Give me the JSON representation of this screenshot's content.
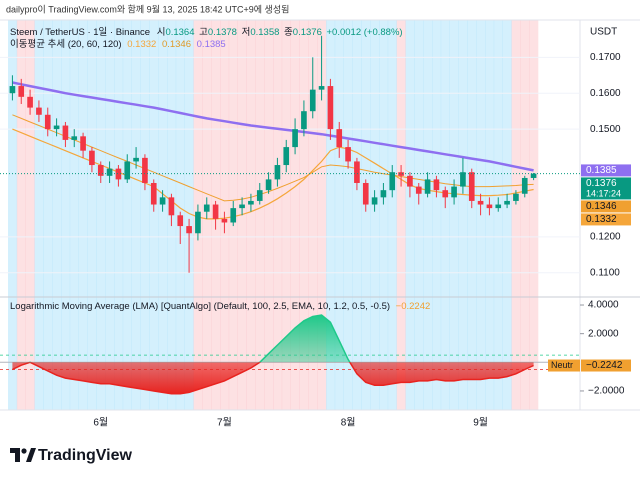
{
  "chart_data": {
    "type": "candlestick",
    "caption": "dailypro이 TradingView.com와 함께 9월 13, 2025 18:42 UTC+9에 생성됨",
    "symbol": "Steem / TetherUS · 1일 · Binance",
    "ohlc_labels": {
      "open": "시",
      "high": "고",
      "low": "저",
      "close": "종"
    },
    "change": "+0.0012 (+0.88%)",
    "ma_title": "이동평균 추세 (20, 60, 120)",
    "currency": "USDT",
    "countdown": "14:17:24",
    "up_color": "#089981",
    "down_color": "#f23645",
    "categories": [
      null,
      null,
      null,
      null,
      null,
      null,
      null,
      null,
      null,
      null,
      "6월",
      null,
      null,
      null,
      null,
      null,
      null,
      null,
      null,
      null,
      null,
      null,
      null,
      null,
      "7월",
      null,
      null,
      null,
      null,
      null,
      null,
      null,
      null,
      null,
      null,
      null,
      null,
      null,
      "8월",
      null,
      null,
      null,
      null,
      null,
      null,
      null,
      null,
      null,
      null,
      null,
      null,
      null,
      null,
      "9월",
      null,
      null,
      null,
      null,
      null,
      null
    ],
    "open": [
      0.16,
      0.162,
      0.159,
      0.156,
      0.154,
      0.15,
      0.151,
      0.147,
      0.148,
      0.144,
      0.14,
      0.137,
      0.139,
      0.136,
      0.141,
      0.142,
      0.135,
      0.129,
      0.131,
      0.126,
      0.123,
      0.121,
      0.127,
      0.129,
      0.125,
      0.124,
      0.128,
      0.129,
      0.13,
      0.133,
      0.136,
      0.14,
      0.145,
      0.15,
      0.155,
      0.161,
      0.162,
      0.15,
      0.145,
      0.141,
      0.135,
      0.129,
      0.131,
      0.133,
      0.138,
      0.137,
      0.134,
      0.132,
      0.136,
      0.133,
      0.131,
      0.134,
      0.138,
      0.13,
      0.129,
      0.128,
      0.129,
      0.13,
      0.132,
      0.1364
    ],
    "high": [
      0.165,
      0.164,
      0.161,
      0.158,
      0.156,
      0.153,
      0.152,
      0.15,
      0.149,
      0.145,
      0.141,
      0.141,
      0.14,
      0.143,
      0.145,
      0.143,
      0.136,
      0.133,
      0.132,
      0.127,
      0.125,
      0.129,
      0.131,
      0.13,
      0.127,
      0.13,
      0.131,
      0.132,
      0.135,
      0.138,
      0.142,
      0.147,
      0.153,
      0.158,
      0.17,
      0.176,
      0.164,
      0.152,
      0.147,
      0.142,
      0.136,
      0.133,
      0.135,
      0.14,
      0.14,
      0.138,
      0.135,
      0.138,
      0.137,
      0.134,
      0.136,
      0.142,
      0.139,
      0.132,
      0.131,
      0.131,
      0.132,
      0.133,
      0.137,
      0.1378
    ],
    "low": [
      0.158,
      0.157,
      0.154,
      0.152,
      0.148,
      0.148,
      0.145,
      0.145,
      0.142,
      0.138,
      0.135,
      0.135,
      0.134,
      0.135,
      0.139,
      0.133,
      0.127,
      0.127,
      0.123,
      0.118,
      0.11,
      0.119,
      0.125,
      0.122,
      0.121,
      0.123,
      0.126,
      0.127,
      0.129,
      0.132,
      0.134,
      0.138,
      0.143,
      0.148,
      0.153,
      0.158,
      0.147,
      0.142,
      0.139,
      0.133,
      0.127,
      0.127,
      0.129,
      0.131,
      0.134,
      0.131,
      0.129,
      0.131,
      0.131,
      0.128,
      0.129,
      0.132,
      0.128,
      0.126,
      0.126,
      0.127,
      0.128,
      0.129,
      0.131,
      0.1358
    ],
    "close": [
      0.162,
      0.159,
      0.156,
      0.154,
      0.15,
      0.151,
      0.147,
      0.148,
      0.144,
      0.14,
      0.137,
      0.139,
      0.136,
      0.141,
      0.142,
      0.135,
      0.129,
      0.131,
      0.126,
      0.123,
      0.121,
      0.127,
      0.129,
      0.125,
      0.124,
      0.128,
      0.129,
      0.13,
      0.133,
      0.136,
      0.14,
      0.145,
      0.15,
      0.155,
      0.161,
      0.162,
      0.15,
      0.145,
      0.141,
      0.135,
      0.129,
      0.131,
      0.133,
      0.138,
      0.137,
      0.134,
      0.132,
      0.136,
      0.133,
      0.131,
      0.134,
      0.138,
      0.13,
      0.129,
      0.128,
      0.129,
      0.13,
      0.132,
      0.1364,
      0.1376
    ],
    "series": [
      {
        "color": "#f5a63a",
        "width": 1.2,
        "values": [
          0.15,
          0.149,
          0.148,
          0.147,
          0.146,
          0.145,
          0.144,
          0.143,
          0.142,
          0.141,
          0.14,
          0.139,
          0.138,
          0.137,
          0.136,
          0.135,
          0.134,
          0.132,
          0.13,
          0.128,
          0.1265,
          0.1255,
          0.125,
          0.125,
          0.1252,
          0.1256,
          0.1262,
          0.127,
          0.128,
          0.1292,
          0.1306,
          0.1322,
          0.134,
          0.136,
          0.1385,
          0.141,
          0.144,
          0.145,
          0.1445,
          0.1435,
          0.142,
          0.1405,
          0.139,
          0.1375,
          0.136,
          0.1345,
          0.1335,
          0.133,
          0.1326,
          0.1322,
          0.132,
          0.1318,
          0.1316,
          0.1315,
          0.1315,
          0.1316,
          0.1318,
          0.1322,
          0.1327,
          0.1332
        ]
      },
      {
        "color": "#f0a030",
        "width": 1,
        "values": [
          0.154,
          0.153,
          0.152,
          0.151,
          0.15,
          0.149,
          0.148,
          0.147,
          0.146,
          0.145,
          0.144,
          0.143,
          0.142,
          0.141,
          0.14,
          0.139,
          0.138,
          0.137,
          0.136,
          0.135,
          0.134,
          0.133,
          0.132,
          0.131,
          0.13,
          0.1302,
          0.1305,
          0.131,
          0.1318,
          0.1326,
          0.1335,
          0.1345,
          0.1355,
          0.1365,
          0.138,
          0.1395,
          0.14,
          0.1398,
          0.1395,
          0.139,
          0.1385,
          0.138,
          0.1376,
          0.1372,
          0.1368,
          0.1364,
          0.136,
          0.1356,
          0.1352,
          0.1348,
          0.1345,
          0.1342,
          0.134,
          0.134,
          0.134,
          0.1341,
          0.1342,
          0.1343,
          0.1345,
          0.1346
        ]
      },
      {
        "color": "#8e6ff0",
        "width": 2.5,
        "values": [
          0.163,
          0.1625,
          0.162,
          0.1615,
          0.161,
          0.1605,
          0.16,
          0.1596,
          0.1592,
          0.1588,
          0.1584,
          0.158,
          0.1576,
          0.1572,
          0.1568,
          0.1564,
          0.156,
          0.1555,
          0.155,
          0.1545,
          0.154,
          0.1535,
          0.153,
          0.1526,
          0.1522,
          0.1518,
          0.1514,
          0.151,
          0.1507,
          0.1504,
          0.1501,
          0.1498,
          0.1495,
          0.1492,
          0.1489,
          0.1486,
          0.1482,
          0.1478,
          0.1474,
          0.147,
          0.1466,
          0.1462,
          0.1458,
          0.1454,
          0.145,
          0.1446,
          0.1442,
          0.1438,
          0.1434,
          0.143,
          0.1426,
          0.1422,
          0.1418,
          0.1414,
          0.141,
          0.1405,
          0.14,
          0.1395,
          0.139,
          0.1385
        ]
      }
    ],
    "ylim": [
      0.1038,
      0.1804
    ],
    "yticks": [
      {
        "value": 0.17,
        "label": "0.1700"
      },
      {
        "value": 0.16,
        "label": "0.1600"
      },
      {
        "value": 0.15,
        "label": "0.1500"
      },
      {
        "value": 0.12,
        "label": "0.1200"
      },
      {
        "value": 0.11,
        "label": "0.1100"
      }
    ],
    "indicator": {
      "type": "area",
      "title": "Logarithmic Moving Average (LMA) [QuantAlgo] (Default, 100, 2.5, EMA, 10, 1.2, 0.5, -0.5)",
      "values": [
        -0.5,
        -0.2,
        0.0,
        -0.3,
        -0.6,
        -0.9,
        -1.1,
        -1.2,
        -1.3,
        -1.4,
        -1.5,
        -1.5,
        -1.6,
        -1.7,
        -1.8,
        -1.9,
        -2.0,
        -2.1,
        -2.2,
        -2.2,
        -2.1,
        -1.9,
        -1.7,
        -1.5,
        -1.3,
        -1.0,
        -0.7,
        -0.4,
        0.0,
        0.6,
        1.2,
        1.8,
        2.4,
        2.9,
        3.2,
        3.3,
        2.8,
        1.5,
        0.2,
        -0.8,
        -1.4,
        -1.6,
        -1.6,
        -1.5,
        -1.4,
        -1.4,
        -1.3,
        -1.3,
        -1.2,
        -1.3,
        -1.3,
        -1.2,
        -1.2,
        -1.2,
        -1.1,
        -1.1,
        -1.0,
        -0.8,
        -0.5,
        -0.2242
      ],
      "last_label": "−0.2242",
      "neutral_label": "Neutr",
      "up_color": "#1fc98a",
      "down_color": "#e8231f",
      "levels": [
        0.5,
        -0.5
      ],
      "ylim": [
        -3.33,
        4.49
      ],
      "yticks": [
        {
          "value": 4,
          "label": "4.0000"
        },
        {
          "value": 2,
          "label": "2.0000"
        },
        {
          "value": -2,
          "label": "−2.0000"
        }
      ]
    }
  },
  "brand": "TradingView"
}
